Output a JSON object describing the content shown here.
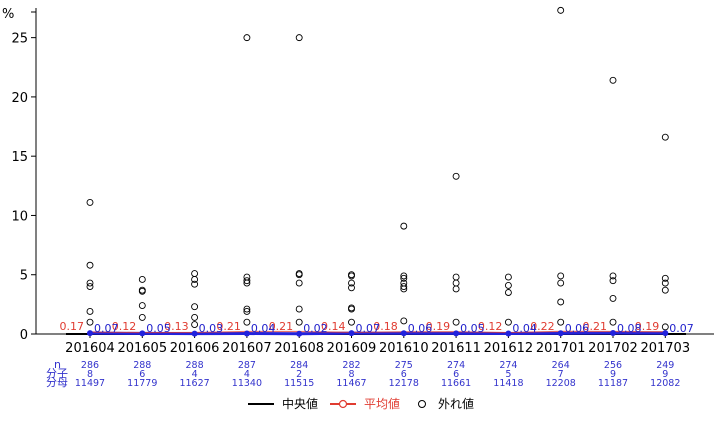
{
  "chart_data": {
    "type": "box",
    "y_unit": "%",
    "ylim": [
      0,
      27.5
    ],
    "yticks": [
      0,
      5,
      10,
      15,
      20,
      25
    ],
    "categories": [
      "201604",
      "201605",
      "201606",
      "201607",
      "201608",
      "201609",
      "201610",
      "201611",
      "201612",
      "201701",
      "201702",
      "201703"
    ],
    "median": [
      0.07,
      0.05,
      0.03,
      0.04,
      0.02,
      0.07,
      0.06,
      0.05,
      0.04,
      0.06,
      0.08,
      0.07
    ],
    "median_labels": [
      "0.07",
      "0.05",
      "0.03",
      "0.04",
      "0.02",
      "0.07",
      "0.06",
      "0.05",
      "0.04",
      "0.06",
      "0.08",
      "0.07"
    ],
    "mean": [
      0.17,
      0.12,
      0.13,
      0.21,
      0.21,
      0.14,
      0.18,
      0.19,
      0.12,
      0.22,
      0.21,
      0.19
    ],
    "mean_labels": [
      "0.17",
      "0.12",
      "0.13",
      "0.21",
      "0.21",
      "0.14",
      "0.18",
      "0.19",
      "0.12",
      "0.22",
      "0.21",
      "0.19"
    ],
    "outliers": [
      [
        11.1,
        5.8,
        4.3,
        4.0,
        1.9,
        1.0
      ],
      [
        4.6,
        3.7,
        3.6,
        2.4,
        1.4
      ],
      [
        5.1,
        4.6,
        4.2,
        2.3,
        1.4,
        0.8
      ],
      [
        25.0,
        4.8,
        4.5,
        4.3,
        2.1,
        1.9,
        1.0
      ],
      [
        25.0,
        5.1,
        5.0,
        4.3,
        2.1,
        1.0
      ],
      [
        5.0,
        4.9,
        4.3,
        3.9,
        2.2,
        2.1,
        1.0
      ],
      [
        9.1,
        4.9,
        4.7,
        4.3,
        4.0,
        3.8,
        1.1
      ],
      [
        13.3,
        4.8,
        4.3,
        3.8,
        1.0
      ],
      [
        4.8,
        4.1,
        3.5,
        1.0
      ],
      [
        27.3,
        4.9,
        4.3,
        2.7,
        1.0
      ],
      [
        21.4,
        4.9,
        4.5,
        3.0,
        1.0
      ],
      [
        16.6,
        4.7,
        4.3,
        3.7,
        0.6
      ]
    ],
    "stats": {
      "labels": [
        "n",
        "分子",
        "分母"
      ],
      "n": [
        "286",
        "288",
        "288",
        "287",
        "284",
        "282",
        "275",
        "274",
        "274",
        "264",
        "256",
        "249"
      ],
      "numerator": [
        "8",
        "6",
        "4",
        "4",
        "2",
        "8",
        "6",
        "6",
        "5",
        "7",
        "9",
        "9"
      ],
      "denominator": [
        "11497",
        "11779",
        "11627",
        "11340",
        "11515",
        "11467",
        "12178",
        "11661",
        "11418",
        "12208",
        "11187",
        "12082"
      ]
    },
    "legend": {
      "position": "bottom",
      "items": [
        {
          "label": "中央値",
          "color": "#000000",
          "style": "line"
        },
        {
          "label": "平均値",
          "color": "#e03c31",
          "style": "line-circle"
        },
        {
          "label": "外れ値",
          "color": "#000000",
          "style": "circle"
        }
      ]
    },
    "colors": {
      "median_line": "#000000",
      "mean_line": "#e03c31",
      "median_points": "#2222dd",
      "stats_text": "#3333cc"
    }
  }
}
